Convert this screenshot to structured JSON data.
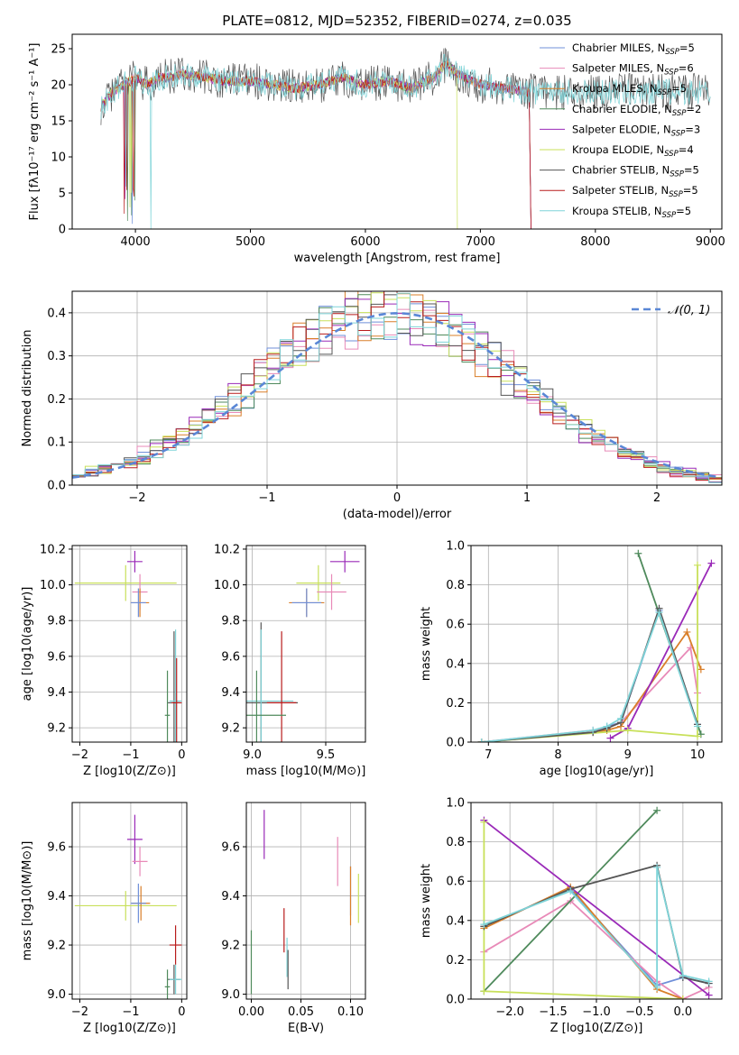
{
  "title": "PLATE=0812, MJD=52352, FIBERID=0274, z=0.035",
  "colors": [
    "#6f8fd9",
    "#e88ab8",
    "#d97f2a",
    "#4f8a5c",
    "#9a2ab8",
    "#c8e05a",
    "#555555",
    "#b81c1c",
    "#7fd4d8"
  ],
  "chart_data": [
    {
      "id": "spectrum",
      "type": "line",
      "xlabel": "wavelength [Angstrom, rest frame]",
      "ylabel": "Flux [fλ10⁻¹⁷ erg cm⁻² s⁻¹ A⁻¹]",
      "xlim": [
        3450,
        9100
      ],
      "ylim": [
        0,
        27
      ],
      "xticks": [
        4000,
        5000,
        6000,
        7000,
        8000,
        9000
      ],
      "yticks": [
        0,
        5,
        10,
        15,
        20,
        25
      ],
      "grid": false,
      "legend_position": "top-right",
      "series": [
        {
          "name": "Chabrier MILES, N_SSP=5",
          "color_index": 0
        },
        {
          "name": "Salpeter MILES, N_SSP=6",
          "color_index": 1
        },
        {
          "name": "Kroupa MILES, N_SSP=5",
          "color_index": 2
        },
        {
          "name": "Chabrier ELODIE, N_SSP=2",
          "color_index": 3
        },
        {
          "name": "Salpeter ELODIE, N_SSP=3",
          "color_index": 4
        },
        {
          "name": "Kroupa ELODIE, N_SSP=4",
          "color_index": 5
        },
        {
          "name": "Chabrier STELIB, N_SSP=5",
          "color_index": 6
        },
        {
          "name": "Salpeter STELIB, N_SSP=5",
          "color_index": 7
        },
        {
          "name": "Kroupa STELIB, N_SSP=5",
          "color_index": 8
        }
      ],
      "continuum": {
        "x": [
          3700,
          3800,
          3900,
          4000,
          4100,
          4200,
          4300,
          4400,
          4600,
          4800,
          5000,
          5200,
          5400,
          5600,
          5800,
          6000,
          6200,
          6400,
          6600,
          6700,
          6800,
          7000,
          7200,
          7400
        ],
        "y": [
          17,
          19,
          20,
          21,
          20,
          21,
          21,
          21.5,
          21,
          20.5,
          20.5,
          20,
          19.5,
          20,
          21,
          20,
          20.5,
          19.5,
          21,
          23,
          21.5,
          20,
          19.5,
          19
        ]
      },
      "coverage": {
        "standard_end": 7430,
        "stelib_end": 9000,
        "elodie_end": 6800
      }
    },
    {
      "id": "residuals",
      "type": "bar",
      "xlabel": "(data-model)/error",
      "ylabel": "Normed distribution",
      "xlim": [
        -2.5,
        2.5
      ],
      "ylim": [
        0,
        0.45
      ],
      "xticks": [
        -2,
        -1,
        0,
        1,
        2
      ],
      "yticks": [
        0.0,
        0.1,
        0.2,
        0.3,
        0.4
      ],
      "grid": true,
      "bin_width": 0.1,
      "legend_position": "top-right",
      "reference_curve": {
        "name": "N(0, 1)",
        "type": "gaussian",
        "mean": 0,
        "sigma": 1
      }
    },
    {
      "id": "age_vs_Z",
      "type": "scatter",
      "xlabel": "Z [log10(Z/Z⊙)]",
      "ylabel": "age  [log10(age/yr)]",
      "xlim": [
        -2.15,
        0.1
      ],
      "ylim": [
        9.12,
        10.22
      ],
      "xticks": [
        -2,
        -1,
        0
      ],
      "yticks": [
        9.2,
        9.4,
        9.6,
        9.8,
        10.0,
        10.2
      ],
      "grid": true,
      "points": [
        {
          "x": -0.92,
          "y": 10.13,
          "xerr": 0.15,
          "yerr": 0.06,
          "color_index": 4
        },
        {
          "x": -1.1,
          "y": 10.01,
          "xerr": 1.0,
          "yerr": 0.1,
          "color_index": 5
        },
        {
          "x": -0.82,
          "y": 9.96,
          "xerr": 0.15,
          "yerr": 0.1,
          "color_index": 1
        },
        {
          "x": -0.82,
          "y": 9.9,
          "xerr": 0.18,
          "yerr": 0.08,
          "color_index": 2
        },
        {
          "x": -0.85,
          "y": 9.9,
          "xerr": 0.15,
          "yerr": 0.08,
          "color_index": 0
        },
        {
          "x": -0.15,
          "y": 9.34,
          "xerr": 0.12,
          "yerr": 0.4,
          "color_index": 6
        },
        {
          "x": -0.12,
          "y": 9.35,
          "xerr": 0.12,
          "yerr": 0.4,
          "color_index": 8
        },
        {
          "x": -0.1,
          "y": 9.34,
          "xerr": 0.1,
          "yerr": 0.25,
          "color_index": 7
        },
        {
          "x": -0.28,
          "y": 9.27,
          "xerr": 0.05,
          "yerr": 0.25,
          "color_index": 3
        }
      ]
    },
    {
      "id": "age_vs_mass",
      "type": "scatter",
      "xlabel": "mass [log10(M/M⊙)]",
      "ylabel": "",
      "xlim": [
        8.96,
        9.77
      ],
      "ylim": [
        9.12,
        10.22
      ],
      "xticks": [
        9.0,
        9.5
      ],
      "yticks": [
        9.2,
        9.4,
        9.6,
        9.8,
        10.0,
        10.2
      ],
      "grid": true,
      "points": [
        {
          "x": 9.63,
          "y": 10.13,
          "xerr": 0.1,
          "yerr": 0.06,
          "color_index": 4
        },
        {
          "x": 9.45,
          "y": 10.01,
          "xerr": 0.15,
          "yerr": 0.1,
          "color_index": 5
        },
        {
          "x": 9.54,
          "y": 9.96,
          "xerr": 0.1,
          "yerr": 0.1,
          "color_index": 1
        },
        {
          "x": 9.37,
          "y": 9.9,
          "xerr": 0.12,
          "yerr": 0.08,
          "color_index": 2
        },
        {
          "x": 9.37,
          "y": 9.9,
          "xerr": 0.1,
          "yerr": 0.08,
          "color_index": 0
        },
        {
          "x": 9.06,
          "y": 9.34,
          "xerr": 0.25,
          "yerr": 0.45,
          "color_index": 6
        },
        {
          "x": 9.06,
          "y": 9.35,
          "xerr": 0.22,
          "yerr": 0.4,
          "color_index": 8
        },
        {
          "x": 9.2,
          "y": 9.34,
          "xerr": 0.1,
          "yerr": 0.4,
          "color_index": 7
        },
        {
          "x": 9.03,
          "y": 9.27,
          "xerr": 0.2,
          "yerr": 0.25,
          "color_index": 3
        }
      ]
    },
    {
      "id": "weights_vs_age",
      "type": "line",
      "xlabel": "age  [log10(age/yr)]",
      "ylabel": "mass weight",
      "xlim": [
        6.75,
        10.35
      ],
      "ylim": [
        0,
        1
      ],
      "xticks": [
        7,
        8,
        9,
        10
      ],
      "yticks": [
        0.0,
        0.2,
        0.4,
        0.6,
        0.8,
        1.0
      ],
      "grid": true,
      "series": [
        {
          "color_index": 0,
          "x": [
            6.9,
            8.5,
            8.7,
            8.9,
            9.45,
            10.0
          ],
          "y": [
            0.0,
            0.05,
            0.08,
            0.1,
            0.67,
            0.09
          ]
        },
        {
          "color_index": 1,
          "x": [
            6.9,
            8.5,
            8.7,
            8.9,
            9.9,
            10.0
          ],
          "y": [
            0.0,
            0.06,
            0.07,
            0.1,
            0.48,
            0.25
          ]
        },
        {
          "color_index": 2,
          "x": [
            6.9,
            8.5,
            8.7,
            8.9,
            9.85,
            10.05
          ],
          "y": [
            0.0,
            0.05,
            0.06,
            0.08,
            0.56,
            0.37
          ]
        },
        {
          "color_index": 3,
          "x": [
            9.15,
            10.05
          ],
          "y": [
            0.96,
            0.04
          ]
        },
        {
          "color_index": 4,
          "x": [
            8.75,
            9.0,
            10.2
          ],
          "y": [
            0.02,
            0.07,
            0.91
          ]
        },
        {
          "color_index": 5,
          "x": [
            6.9,
            9.0,
            10.0,
            10.0
          ],
          "y": [
            0.0,
            0.06,
            0.03,
            0.9
          ]
        },
        {
          "color_index": 6,
          "x": [
            6.9,
            8.5,
            8.7,
            8.9,
            9.45,
            10.0
          ],
          "y": [
            0.0,
            0.05,
            0.07,
            0.1,
            0.68,
            0.09
          ]
        },
        {
          "color_index": 8,
          "x": [
            6.9,
            8.5,
            8.7,
            8.9,
            9.45,
            10.0
          ],
          "y": [
            0.0,
            0.06,
            0.08,
            0.12,
            0.66,
            0.08
          ]
        }
      ]
    },
    {
      "id": "mass_vs_Z",
      "type": "scatter",
      "xlabel": "Z [log10(Z/Z⊙)]",
      "ylabel": "mass [log10(M/M⊙)]",
      "xlim": [
        -2.15,
        0.1
      ],
      "ylim": [
        8.98,
        9.78
      ],
      "xticks": [
        -2,
        -1,
        0
      ],
      "yticks": [
        9.0,
        9.2,
        9.4,
        9.6
      ],
      "grid": true,
      "points": [
        {
          "x": -0.92,
          "y": 9.63,
          "xerr": 0.15,
          "yerr": 0.1,
          "color_index": 4
        },
        {
          "x": -0.82,
          "y": 9.54,
          "xerr": 0.15,
          "yerr": 0.06,
          "color_index": 1
        },
        {
          "x": -1.1,
          "y": 9.36,
          "xerr": 1.0,
          "yerr": 0.06,
          "color_index": 5
        },
        {
          "x": -0.8,
          "y": 9.37,
          "xerr": 0.18,
          "yerr": 0.07,
          "color_index": 2
        },
        {
          "x": -0.85,
          "y": 9.37,
          "xerr": 0.15,
          "yerr": 0.08,
          "color_index": 0
        },
        {
          "x": -0.12,
          "y": 9.2,
          "xerr": 0.12,
          "yerr": 0.08,
          "color_index": 7
        },
        {
          "x": -0.15,
          "y": 9.06,
          "xerr": 0.12,
          "yerr": 0.06,
          "color_index": 6
        },
        {
          "x": -0.12,
          "y": 9.06,
          "xerr": 0.12,
          "yerr": 0.06,
          "color_index": 8
        },
        {
          "x": -0.28,
          "y": 9.03,
          "xerr": 0.05,
          "yerr": 0.07,
          "color_index": 3
        }
      ]
    },
    {
      "id": "mass_vs_EBV",
      "type": "scatter",
      "xlabel": "E(B-V)",
      "ylabel": "",
      "xlim": [
        -0.005,
        0.115
      ],
      "ylim": [
        8.98,
        9.78
      ],
      "xticks": [
        0.0,
        0.05,
        0.1
      ],
      "yticks": [
        9.0,
        9.2,
        9.4,
        9.6
      ],
      "grid": true,
      "points": [
        {
          "x": 0.013,
          "y": 9.65,
          "yerr": 0.1,
          "color_index": 4
        },
        {
          "x": 0.087,
          "y": 9.54,
          "yerr": 0.1,
          "color_index": 1
        },
        {
          "x": 0.1,
          "y": 9.42,
          "yerr": 0.1,
          "color_index": 0
        },
        {
          "x": 0.1,
          "y": 9.4,
          "yerr": 0.12,
          "color_index": 2
        },
        {
          "x": 0.108,
          "y": 9.39,
          "yerr": 0.1,
          "color_index": 5
        },
        {
          "x": 0.033,
          "y": 9.26,
          "yerr": 0.09,
          "color_index": 7
        },
        {
          "x": 0.036,
          "y": 9.15,
          "yerr": 0.08,
          "color_index": 8
        },
        {
          "x": 0.037,
          "y": 9.1,
          "yerr": 0.08,
          "color_index": 6
        },
        {
          "x": 0.0,
          "y": 9.13,
          "yerr": 0.13,
          "color_index": 3
        }
      ]
    },
    {
      "id": "weights_vs_Z",
      "type": "line",
      "xlabel": "Z [log10(Z/Z⊙)]",
      "ylabel": "mass weight",
      "xlim": [
        -2.45,
        0.45
      ],
      "ylim": [
        0,
        1
      ],
      "xticks": [
        -2.0,
        -1.5,
        -1.0,
        -0.5,
        0.0
      ],
      "yticks": [
        0.0,
        0.2,
        0.4,
        0.6,
        0.8,
        1.0
      ],
      "grid": true,
      "series": [
        {
          "color_index": 0,
          "x": [
            -2.3,
            -1.3,
            -0.3,
            0.0,
            0.3
          ],
          "y": [
            0.37,
            0.56,
            0.07,
            0.11,
            0.08
          ]
        },
        {
          "color_index": 1,
          "x": [
            -2.3,
            -1.3,
            -0.3,
            0.0,
            0.3
          ],
          "y": [
            0.24,
            0.5,
            0.09,
            0.0,
            0.06
          ]
        },
        {
          "color_index": 2,
          "x": [
            -2.3,
            -1.3,
            -0.3,
            0.0
          ],
          "y": [
            0.36,
            0.57,
            0.05,
            0.0
          ]
        },
        {
          "color_index": 3,
          "x": [
            -2.3,
            -0.3
          ],
          "y": [
            0.04,
            0.96
          ]
        },
        {
          "color_index": 4,
          "x": [
            -2.3,
            0.3
          ],
          "y": [
            0.91,
            0.02
          ]
        },
        {
          "color_index": 5,
          "x": [
            -2.3,
            -2.3,
            0.0
          ],
          "y": [
            0.9,
            0.04,
            0.0
          ]
        },
        {
          "color_index": 6,
          "x": [
            -2.3,
            -1.3,
            -0.3,
            0.0,
            0.3
          ],
          "y": [
            0.37,
            0.56,
            0.68,
            0.11,
            0.08
          ]
        },
        {
          "color_index": 8,
          "x": [
            -2.3,
            -1.3,
            -0.3,
            -0.3,
            0.0,
            0.3
          ],
          "y": [
            0.38,
            0.55,
            0.06,
            0.67,
            0.12,
            0.09
          ]
        }
      ]
    }
  ]
}
